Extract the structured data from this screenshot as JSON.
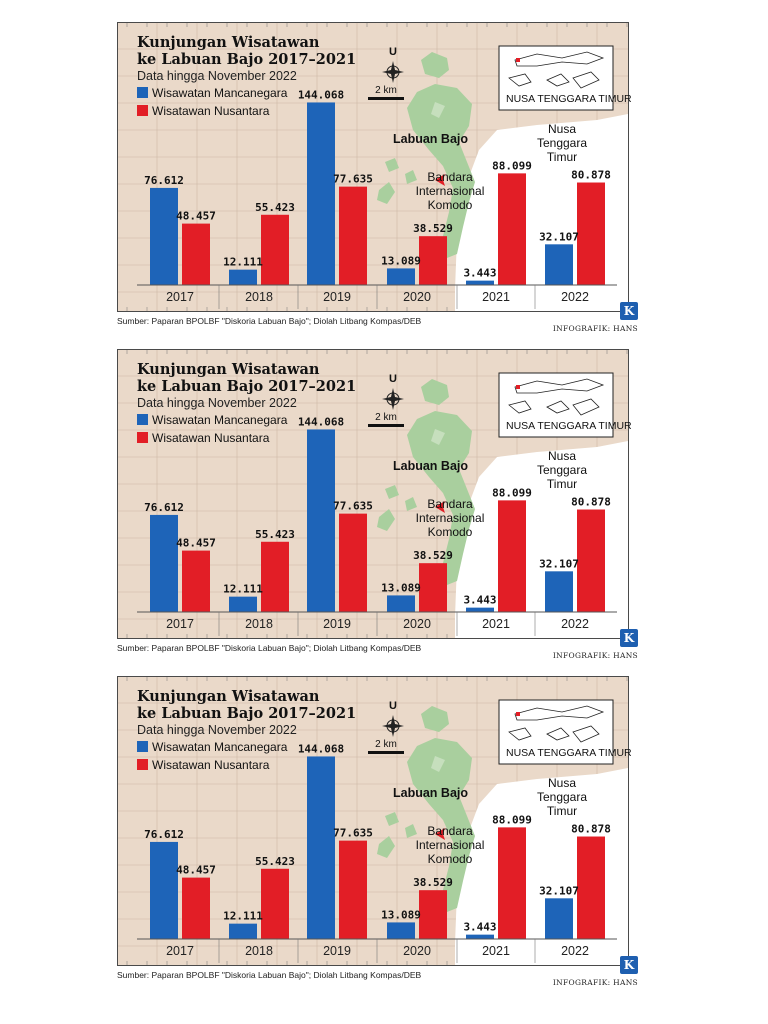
{
  "title_line1": "Kunjungan Wisatawan",
  "title_line2": "ke Labuan Bajo 2017–2021",
  "subtitle": "Data hingga November 2022",
  "legend": {
    "foreign": "Wisawatan Mancanegara",
    "domestic": "Wisatawan Nusantara"
  },
  "map": {
    "north": "U",
    "scale": "2 km",
    "labuan_bajo": "Labuan Bajo",
    "region_line1": "Nusa",
    "region_line2": "Tenggara",
    "region_line3": "Timur",
    "airport_line1": "Bandara",
    "airport_line2": "Internasional",
    "airport_line3": "Komodo",
    "inset_label": "NUSA TENGGARA TIMUR"
  },
  "source": "Sumber: Paparan BPOLBF \"Diskoria Labuan Bajo\"; Diolah Litbang Kompas/DEB",
  "credit": "INFOGRAFIK: HANS",
  "logo_letter": "K",
  "colors": {
    "foreign": "#1e64b8",
    "domestic": "#e21e26",
    "background": "#ead9c9",
    "island": "#a9cf9e",
    "sea": "#ffffff"
  },
  "chart_data": {
    "type": "bar",
    "title": "Kunjungan Wisatawan ke Labuan Bajo 2017–2021",
    "subtitle": "Data hingga November 2022",
    "categories": [
      "2017",
      "2018",
      "2019",
      "2020",
      "2021",
      "2022"
    ],
    "series": [
      {
        "name": "Wisawatan Mancanegara",
        "values": [
          76612,
          12111,
          144068,
          13089,
          3443,
          32107
        ],
        "labels": [
          "76.612",
          "12.111",
          "144.068",
          "13.089",
          "3.443",
          "32.107"
        ]
      },
      {
        "name": "Wisatawan Nusantara",
        "values": [
          48457,
          55423,
          77635,
          38529,
          88099,
          80878
        ],
        "labels": [
          "48.457",
          "55.423",
          "77.635",
          "38.529",
          "88.099",
          "80.878"
        ]
      }
    ],
    "ylim": [
      0,
      160000
    ],
    "xlabel": "",
    "ylabel": "",
    "legend": "top-left"
  }
}
